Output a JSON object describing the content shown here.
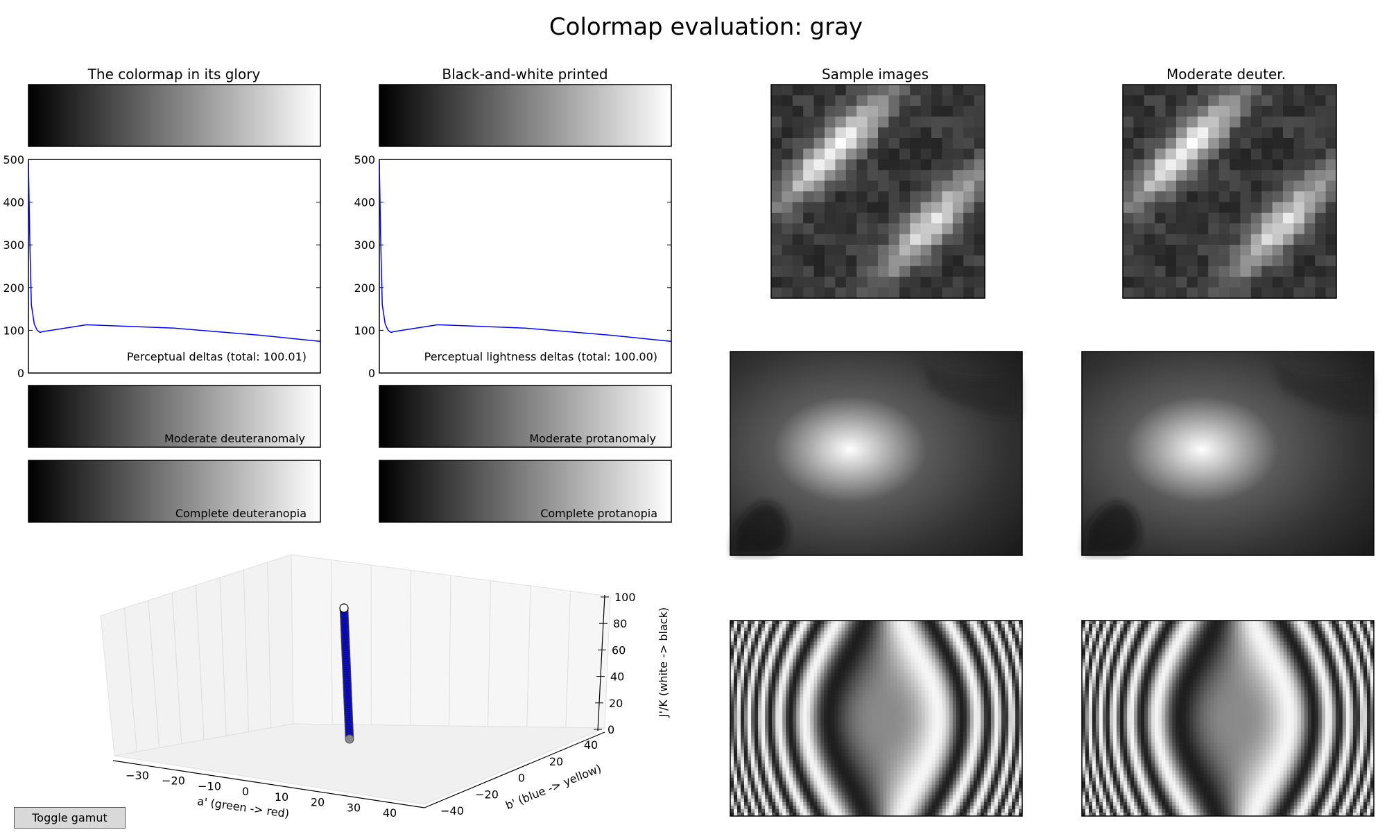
{
  "figure_title": "Colormap evaluation: gray",
  "panels": {
    "glory_title": "The colormap in its glory",
    "bw_title": "Black-and-white printed",
    "samples_title": "Sample images",
    "deuter_title": "Moderate deuter.",
    "strip_labels": [
      "Moderate deuteranomaly",
      "Complete deuteranopia",
      "Moderate protanomaly",
      "Complete protanopia"
    ]
  },
  "toggle_button": "Toggle gamut",
  "colors": {
    "line": "#0000ff",
    "scatter_fill": "#0000cc",
    "axis": "#000000",
    "grid": "#dddddd"
  },
  "chart_data": [
    {
      "type": "line",
      "label": "Perceptual deltas (total: 100.01)",
      "ylim": [
        0,
        500
      ],
      "yticks": [
        "0",
        "100",
        "200",
        "300",
        "400",
        "500"
      ],
      "x": [
        0,
        0.005,
        0.01,
        0.02,
        0.03,
        0.04,
        0.05,
        0.2,
        0.5,
        0.8,
        1.0
      ],
      "y": [
        490,
        300,
        160,
        115,
        100,
        95,
        97,
        113,
        105,
        88,
        74
      ]
    },
    {
      "type": "line",
      "label": "Perceptual lightness deltas (total: 100.00)",
      "ylim": [
        0,
        500
      ],
      "yticks": [
        "0",
        "100",
        "200",
        "300",
        "400",
        "500"
      ],
      "x": [
        0,
        0.005,
        0.01,
        0.02,
        0.03,
        0.04,
        0.05,
        0.2,
        0.5,
        0.8,
        1.0
      ],
      "y": [
        490,
        300,
        160,
        115,
        100,
        95,
        97,
        113,
        105,
        88,
        74
      ]
    },
    {
      "type": "scatter",
      "xlabel": "a' (green -> red)",
      "ylabel": "b' (blue -> yellow)",
      "zlabel": "J'/K (white -> black)",
      "xticks": [
        "−30",
        "−20",
        "−10",
        "0",
        "10",
        "20",
        "30",
        "40"
      ],
      "yticks": [
        "−40",
        "−20",
        "0",
        "20",
        "40"
      ],
      "zticks": [
        "0",
        "20",
        "40",
        "60",
        "80",
        "100"
      ],
      "zlim": [
        0,
        100
      ],
      "a": 0,
      "b": 0,
      "J": [
        0,
        10,
        20,
        30,
        40,
        50,
        60,
        70,
        80,
        90,
        100
      ]
    }
  ]
}
